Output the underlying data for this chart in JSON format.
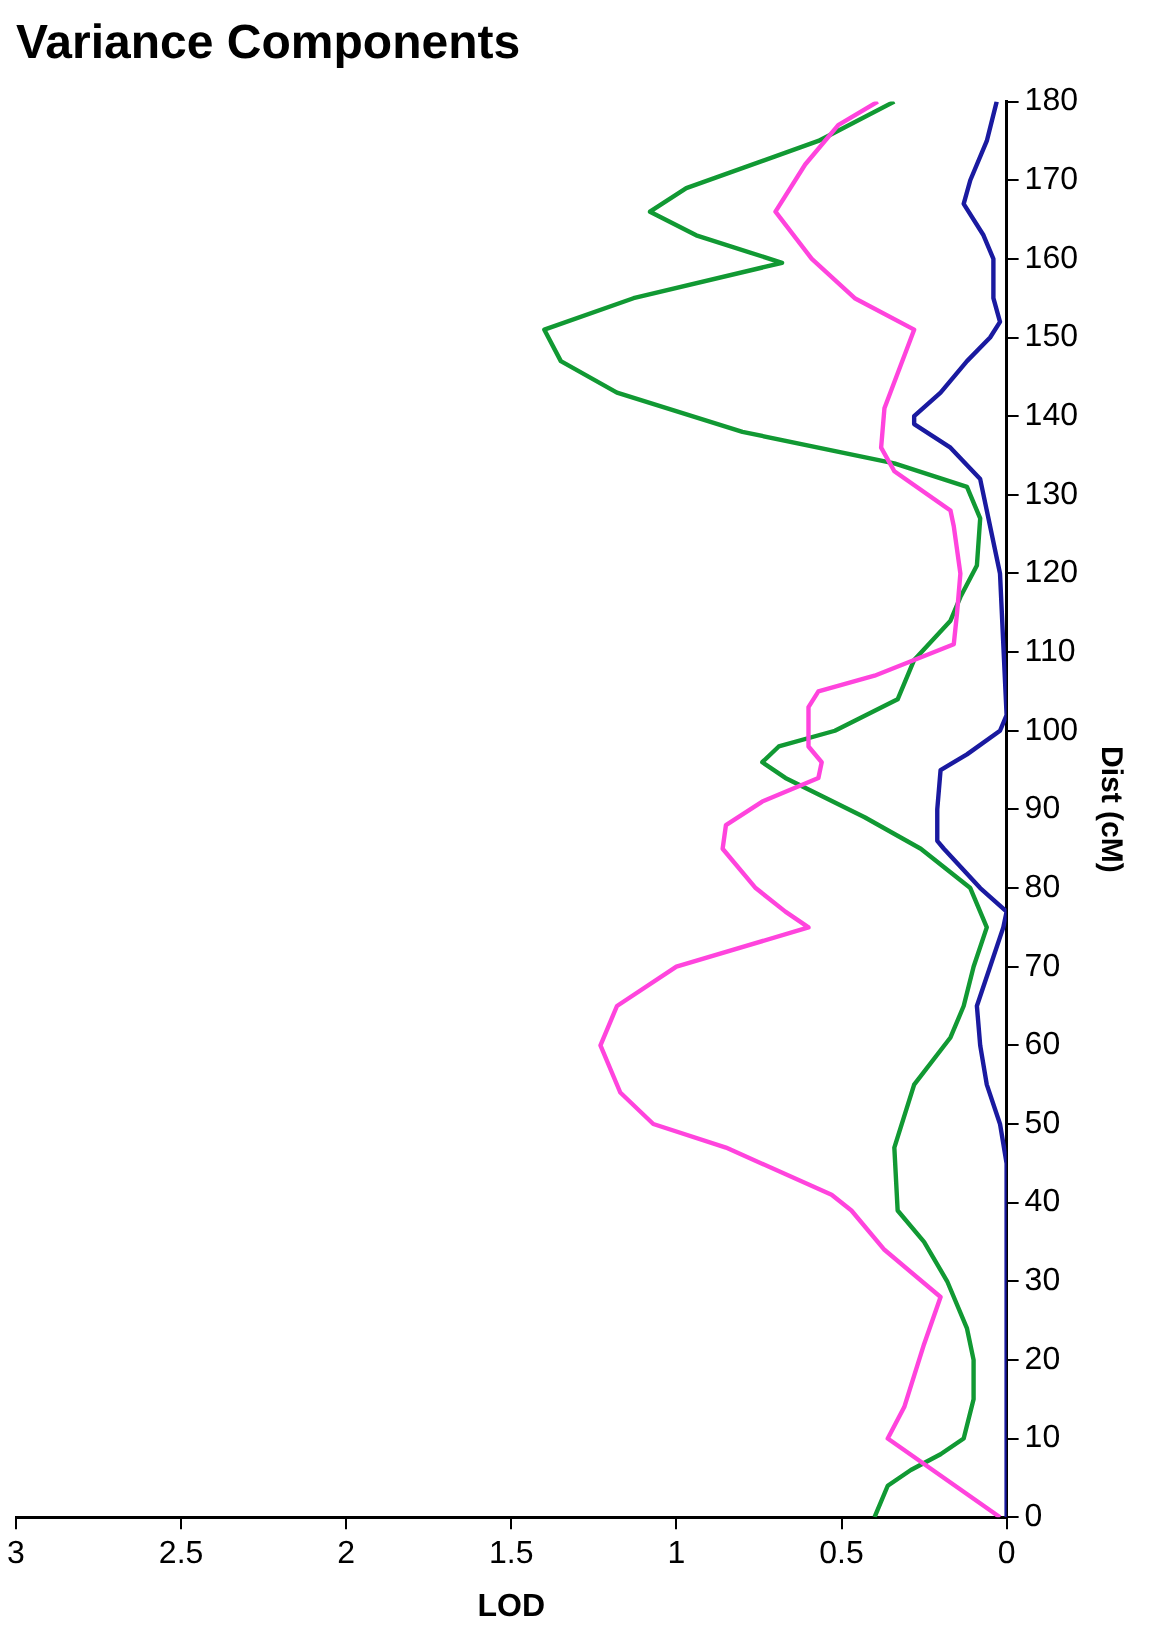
{
  "chart_data": {
    "type": "line",
    "title": "Variance Components",
    "xlabel": "LOD",
    "ylabel": "Dist (cM)",
    "xlim": [
      3,
      0
    ],
    "xticks": [
      0,
      0.5,
      1,
      1.5,
      2,
      2.5,
      3
    ],
    "ylim": [
      0,
      180
    ],
    "yticks": [
      0,
      10,
      20,
      30,
      40,
      50,
      60,
      70,
      80,
      90,
      100,
      110,
      120,
      130,
      140,
      150,
      160,
      170,
      180
    ],
    "series": [
      {
        "color": "#ff44dd",
        "values": [
          0,
          10,
          14,
          22,
          28,
          34,
          39,
          41,
          47,
          50,
          54,
          60,
          65,
          70,
          75,
          77,
          80,
          85,
          88,
          91,
          94,
          96,
          98,
          103,
          105,
          107,
          111,
          115,
          120,
          126,
          128,
          133,
          136,
          141,
          151,
          155,
          160,
          166,
          172,
          177,
          180
        ],
        "x": [
          0.02,
          0.36,
          0.31,
          0.25,
          0.2,
          0.37,
          0.47,
          0.53,
          0.85,
          1.07,
          1.17,
          1.23,
          1.18,
          1.0,
          0.6,
          0.67,
          0.76,
          0.86,
          0.85,
          0.74,
          0.57,
          0.56,
          0.6,
          0.6,
          0.57,
          0.4,
          0.16,
          0.15,
          0.14,
          0.16,
          0.17,
          0.34,
          0.38,
          0.37,
          0.28,
          0.46,
          0.59,
          0.7,
          0.61,
          0.51,
          0.39
        ]
      },
      {
        "color": "#119933",
        "values": [
          0,
          4,
          6,
          8,
          10,
          15,
          20,
          24,
          30,
          35,
          39,
          47,
          55,
          61,
          65,
          70,
          75,
          80,
          85,
          89,
          94,
          96,
          98,
          100,
          104,
          109,
          114,
          117,
          121,
          127,
          131,
          134,
          138,
          143,
          147,
          151,
          155,
          159.5,
          163,
          166,
          169,
          175,
          180
        ],
        "x": [
          0.4,
          0.36,
          0.29,
          0.2,
          0.13,
          0.1,
          0.1,
          0.12,
          0.18,
          0.25,
          0.33,
          0.34,
          0.28,
          0.17,
          0.13,
          0.1,
          0.06,
          0.11,
          0.26,
          0.43,
          0.67,
          0.74,
          0.69,
          0.52,
          0.33,
          0.28,
          0.17,
          0.14,
          0.09,
          0.08,
          0.12,
          0.34,
          0.8,
          1.18,
          1.35,
          1.4,
          1.13,
          0.68,
          0.94,
          1.08,
          0.97,
          0.57,
          0.34
        ]
      },
      {
        "color": "#1a1aa0",
        "values": [
          0,
          45,
          50,
          55,
          60,
          65,
          70,
          75,
          77,
          80,
          85,
          86,
          90,
          95,
          97,
          100,
          102,
          120,
          128,
          132,
          136,
          139,
          140,
          143,
          147,
          150,
          152,
          155,
          160,
          163,
          167,
          170,
          175,
          180
        ],
        "x": [
          0,
          0,
          0.02,
          0.06,
          0.08,
          0.09,
          0.05,
          0.01,
          0,
          0.08,
          0.19,
          0.21,
          0.21,
          0.2,
          0.12,
          0.02,
          0,
          0.02,
          0.06,
          0.08,
          0.17,
          0.28,
          0.28,
          0.2,
          0.12,
          0.05,
          0.02,
          0.04,
          0.04,
          0.07,
          0.13,
          0.11,
          0.06,
          0.03
        ]
      }
    ]
  }
}
